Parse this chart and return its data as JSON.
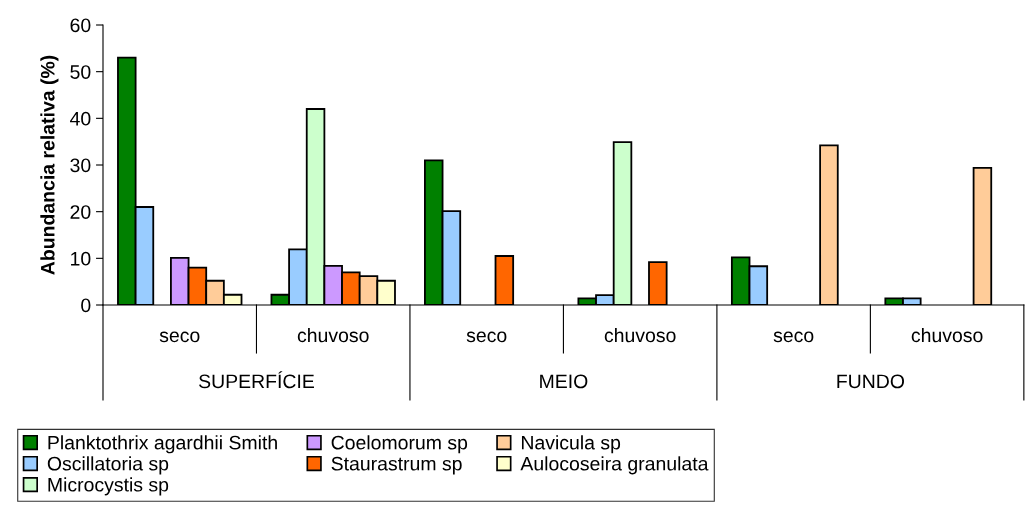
{
  "chart_data": {
    "type": "bar",
    "ylabel": "Abundancia relativa (%)",
    "categories": [
      "seco",
      "chuvoso",
      "seco",
      "chuvoso",
      "seco",
      "chuvoso"
    ],
    "annotations": [
      "SUPERFÍCIE",
      "MEIO",
      "FUNDO"
    ],
    "series": [
      {
        "name": "Planktothrix agardhii Smith",
        "color": "#008000",
        "values": [
          53,
          2.2,
          31,
          1.4,
          10.2,
          1.4
        ]
      },
      {
        "name": "Oscillatoria sp",
        "color": "#99ccff",
        "values": [
          21,
          11.9,
          20.1,
          2.1,
          8.3,
          1.4
        ]
      },
      {
        "name": "Microcystis sp",
        "color": "#ccffcc",
        "values": [
          null,
          42,
          null,
          34.9,
          null,
          null
        ]
      },
      {
        "name": "Coelomorum sp",
        "color": "#cc99ff",
        "values": [
          10.1,
          8.4,
          null,
          null,
          null,
          null
        ]
      },
      {
        "name": "Staurastrum sp",
        "color": "#ff6600",
        "values": [
          8,
          7,
          10.5,
          9.2,
          null,
          null
        ]
      },
      {
        "name": "Navicula sp",
        "color": "#ffcc99",
        "values": [
          5.2,
          6.2,
          null,
          null,
          34.2,
          29.4
        ]
      },
      {
        "name": "Aulocoseira granulata",
        "color": "#ffffcc",
        "values": [
          2.2,
          5.2,
          null,
          null,
          null,
          null
        ]
      }
    ],
    "ylim": [
      0,
      60
    ],
    "yticks": [
      0,
      10,
      20,
      30,
      40,
      50,
      60
    ],
    "grid": false,
    "legend": "bottom"
  }
}
